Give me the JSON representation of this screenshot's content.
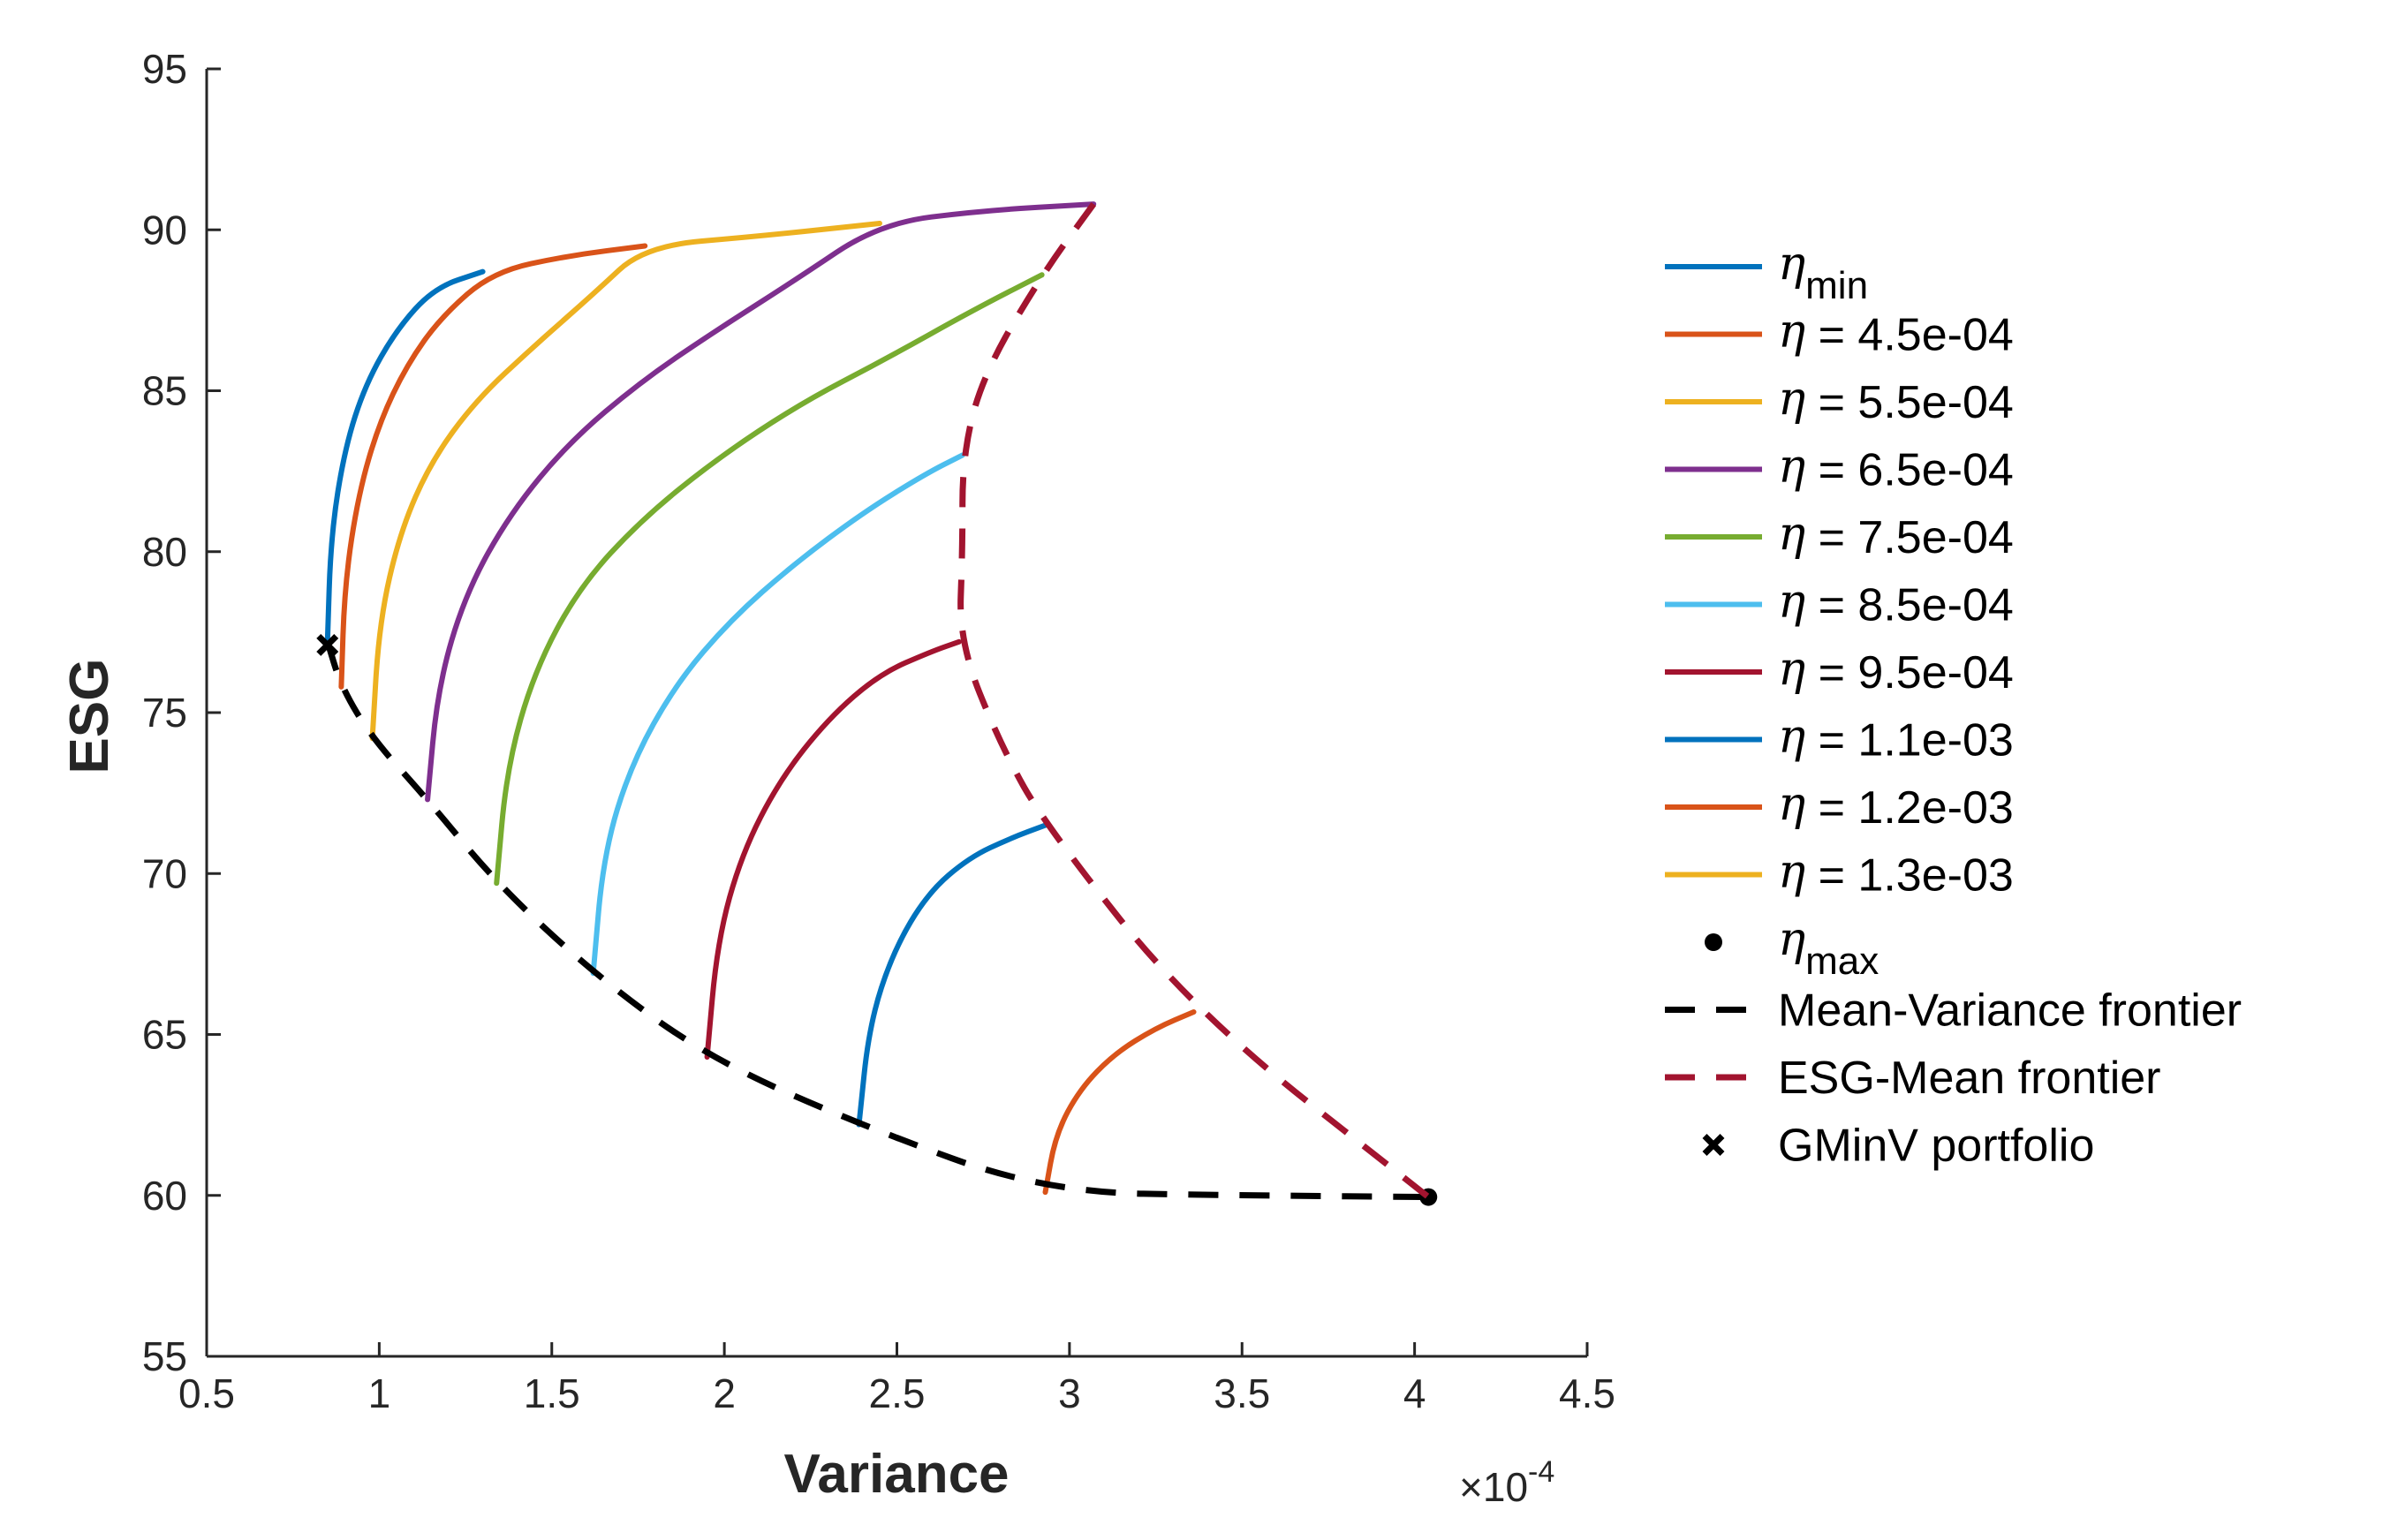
{
  "chart_data": {
    "type": "line",
    "title": "",
    "xlabel": "Variance",
    "ylabel": "ESG",
    "x_exponent_label": "×10",
    "x_exponent_power": "-4",
    "xlim": [
      0.5,
      4.5
    ],
    "ylim": [
      55,
      95
    ],
    "xticks": [
      "0.5",
      "1",
      "1.5",
      "2",
      "2.5",
      "3",
      "3.5",
      "4",
      "4.5"
    ],
    "yticks": [
      "55",
      "60",
      "65",
      "70",
      "75",
      "80",
      "85",
      "90",
      "95"
    ],
    "legend_position": "right",
    "series": [
      {
        "name": "η_min",
        "eta": "η",
        "label_sub": "min",
        "label_main": "",
        "color": "#0072BD",
        "style": "solid",
        "x": [
          0.85,
          0.86,
          0.9,
          0.96,
          1.05,
          1.16,
          1.3
        ],
        "y": [
          77.2,
          80.5,
          83.2,
          85.2,
          86.9,
          88.2,
          88.7
        ]
      },
      {
        "name": "η = 4.5e-04",
        "eta": "η",
        "label_sub": "",
        "label_main": " = 4.5e-04",
        "color": "#D95319",
        "style": "solid",
        "x": [
          0.89,
          0.9,
          0.94,
          1.0,
          1.08,
          1.18,
          1.33,
          1.55,
          1.77
        ],
        "y": [
          75.8,
          79.0,
          81.8,
          84.0,
          85.8,
          87.3,
          88.7,
          89.2,
          89.5
        ]
      },
      {
        "name": "η = 5.5e-04",
        "eta": "η",
        "label_sub": "",
        "label_main": " = 5.5e-04",
        "color": "#EDB120",
        "style": "solid",
        "x": [
          0.98,
          1.0,
          1.06,
          1.15,
          1.28,
          1.45,
          1.62,
          1.77,
          2.1,
          2.45
        ],
        "y": [
          74.2,
          77.8,
          80.6,
          82.8,
          84.7,
          86.4,
          88.0,
          89.5,
          89.8,
          90.2
        ]
      },
      {
        "name": "η = 6.5e-04",
        "eta": "η",
        "label_sub": "",
        "label_main": " = 6.5e-04",
        "color": "#7E2F8E",
        "style": "solid",
        "x": [
          1.14,
          1.17,
          1.25,
          1.38,
          1.55,
          1.76,
          1.98,
          2.2,
          2.45,
          2.75,
          3.07
        ],
        "y": [
          72.3,
          75.8,
          78.7,
          81.2,
          83.4,
          85.3,
          86.9,
          88.4,
          90.2,
          90.6,
          90.8
        ]
      },
      {
        "name": "η = 7.5e-04",
        "eta": "η",
        "label_sub": "",
        "label_main": " = 7.5e-04",
        "color": "#77AC30",
        "style": "solid",
        "x": [
          1.34,
          1.37,
          1.45,
          1.58,
          1.76,
          1.98,
          2.22,
          2.47,
          2.72,
          2.92
        ],
        "y": [
          69.7,
          73.3,
          76.3,
          78.9,
          81.0,
          82.9,
          84.6,
          86.0,
          87.5,
          88.6
        ]
      },
      {
        "name": "η = 8.5e-04",
        "eta": "η",
        "label_sub": "",
        "label_main": " = 8.5e-04",
        "color": "#4DBEEE",
        "style": "solid",
        "x": [
          1.62,
          1.65,
          1.73,
          1.86,
          2.02,
          2.2,
          2.4,
          2.58,
          2.69
        ],
        "y": [
          66.9,
          70.6,
          73.4,
          75.9,
          77.9,
          79.6,
          81.2,
          82.4,
          83.0
        ]
      },
      {
        "name": "η = 9.5e-04",
        "eta": "η",
        "label_sub": "",
        "label_main": " = 9.5e-04",
        "color": "#A2142F",
        "style": "solid",
        "x": [
          1.95,
          1.98,
          2.05,
          2.16,
          2.3,
          2.45,
          2.6,
          2.68
        ],
        "y": [
          64.3,
          67.9,
          70.6,
          72.9,
          74.8,
          76.2,
          76.9,
          77.2
        ]
      },
      {
        "name": "η = 1.1e-03",
        "eta": "η",
        "label_sub": "",
        "label_main": " = 1.1e-03",
        "color": "#0072BD",
        "style": "solid",
        "x": [
          2.39,
          2.42,
          2.49,
          2.59,
          2.71,
          2.83,
          2.93
        ],
        "y": [
          62.2,
          65.3,
          67.6,
          69.4,
          70.5,
          71.1,
          71.5
        ]
      },
      {
        "name": "η = 1.2e-03",
        "eta": "η",
        "label_sub": "",
        "label_main": " = 1.2e-03",
        "color": "#D95319",
        "style": "solid",
        "x": [
          2.93,
          2.96,
          3.03,
          3.13,
          3.25,
          3.36
        ],
        "y": [
          60.1,
          61.9,
          63.3,
          64.4,
          65.2,
          65.7
        ]
      },
      {
        "name": "η = 1.3e-03",
        "eta": "η",
        "label_sub": "",
        "label_main": " = 1.3e-03",
        "color": "#EDB120",
        "style": "solid",
        "x": [],
        "y": []
      },
      {
        "name": "η_max",
        "eta": "η",
        "label_sub": "max",
        "label_main": "",
        "color": "#000000",
        "style": "marker-dot",
        "x": [
          4.04
        ],
        "y": [
          59.95
        ]
      },
      {
        "name": "Mean-Variance frontier",
        "eta": "",
        "label_sub": "",
        "label_main": "Mean-Variance frontier",
        "color": "#000000",
        "style": "dashed",
        "x": [
          0.85,
          0.89,
          0.98,
          1.14,
          1.34,
          1.62,
          1.95,
          2.39,
          2.93,
          3.5,
          4.04
        ],
        "y": [
          77.2,
          75.8,
          74.2,
          72.3,
          69.7,
          66.9,
          64.3,
          62.2,
          60.1,
          60.0,
          59.95
        ]
      },
      {
        "name": "ESG-Mean frontier",
        "eta": "",
        "label_sub": "",
        "label_main": "ESG-Mean frontier",
        "color": "#A2142F",
        "style": "dashed",
        "x": [
          3.07,
          2.92,
          2.75,
          2.69,
          2.69,
          2.68,
          2.8,
          2.93,
          3.36,
          4.04
        ],
        "y": [
          90.8,
          88.6,
          85.5,
          83.0,
          80.0,
          77.2,
          74.0,
          71.5,
          65.7,
          59.95
        ]
      },
      {
        "name": "GMinV portfolio",
        "eta": "",
        "label_sub": "",
        "label_main": "GMinV portfolio",
        "color": "#000000",
        "style": "marker-x",
        "x": [
          0.85
        ],
        "y": [
          77.1
        ]
      }
    ]
  }
}
